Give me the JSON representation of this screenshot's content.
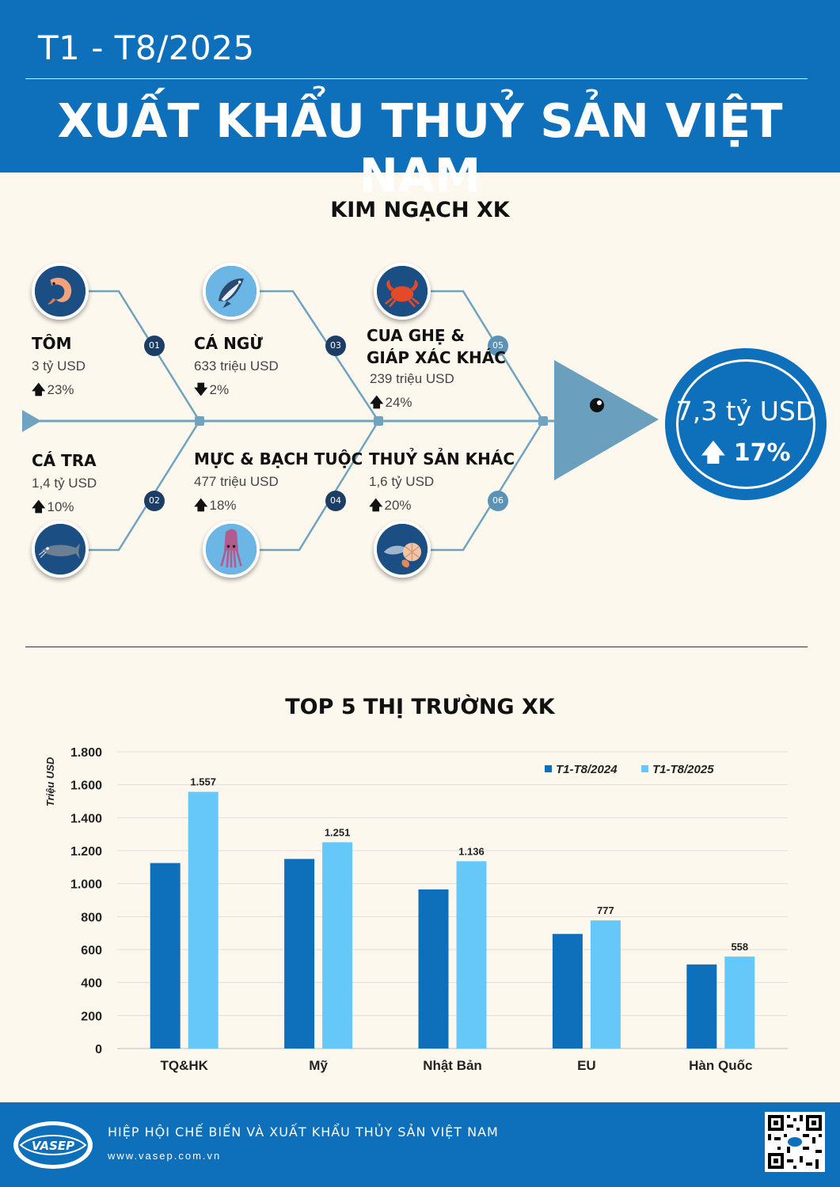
{
  "header": {
    "period": "T1 - T8/2025",
    "title": "XUẤT KHẨU THUỶ SẢN VIỆT NAM"
  },
  "export_value": {
    "section_title": "KIM NGẠCH XK",
    "total": {
      "value": "7,3 tỷ USD",
      "change": "17%",
      "direction": "up"
    },
    "categories": [
      {
        "num": "01",
        "name": "TÔM",
        "value": "3 tỷ USD",
        "change": "23%",
        "direction": "up",
        "icon": "shrimp-icon"
      },
      {
        "num": "02",
        "name": "CÁ TRA",
        "value": "1,4 tỷ USD",
        "change": "10%",
        "direction": "up",
        "icon": "catfish-icon"
      },
      {
        "num": "03",
        "name": "CÁ NGỪ",
        "value": "633 triệu USD",
        "change": "2%",
        "direction": "down",
        "icon": "tuna-icon"
      },
      {
        "num": "04",
        "name": "MỰC & BẠCH TUỘC",
        "value": "477 triệu USD",
        "change": "18%",
        "direction": "up",
        "icon": "squid-icon"
      },
      {
        "num": "05",
        "name": "CUA GHẸ &",
        "name2": "GIÁP XÁC KHÁC",
        "value": "239 triệu USD",
        "change": "24%",
        "direction": "up",
        "icon": "crab-icon"
      },
      {
        "num": "06",
        "name": "THUỶ SẢN KHÁC",
        "value": "1,6 tỷ USD",
        "change": "20%",
        "direction": "up",
        "icon": "seafood-icon"
      }
    ],
    "colors": {
      "dark_badge": "#1c3e66",
      "mid_badge": "#5a93b5",
      "bone_line": "#6fa3bf",
      "fish_head": "#6a9fbe"
    }
  },
  "top_markets": {
    "section_title": "TOP 5 THỊ TRƯỜNG XK"
  },
  "chart_data": {
    "type": "bar",
    "title": "TOP 5 THỊ TRƯỜNG XK",
    "ylabel": "Triệu USD",
    "xlabel": "",
    "categories": [
      "TQ&HK",
      "Mỹ",
      "Nhật Bản",
      "EU",
      "Hàn Quốc"
    ],
    "series": [
      {
        "name": "T1-T8/2024",
        "values": [
          1125,
          1150,
          965,
          695,
          510
        ],
        "color": "#0e6fba",
        "show_labels": false
      },
      {
        "name": "T1-T8/2025",
        "values": [
          1557,
          1251,
          1136,
          777,
          558
        ],
        "color": "#66c7f9",
        "show_labels": true
      }
    ],
    "data_labels": [
      "1.557",
      "1.251",
      "1.136",
      "777",
      "558"
    ],
    "ylim": [
      0,
      1800
    ],
    "yticks": [
      0,
      200,
      400,
      600,
      800,
      1000,
      1200,
      1400,
      1600,
      1800
    ],
    "ytick_labels": [
      "0",
      "200",
      "400",
      "600",
      "800",
      "1.000",
      "1.200",
      "1.400",
      "1.600",
      "1.800"
    ],
    "grid": true,
    "legend_position": "top-right"
  },
  "footer": {
    "org": "HIỆP HỘI CHẾ BIẾN VÀ XUẤT KHẨU THỦY SẢN VIỆT NAM",
    "url": "www.vasep.com.vn",
    "logo_text": "VASEP"
  }
}
